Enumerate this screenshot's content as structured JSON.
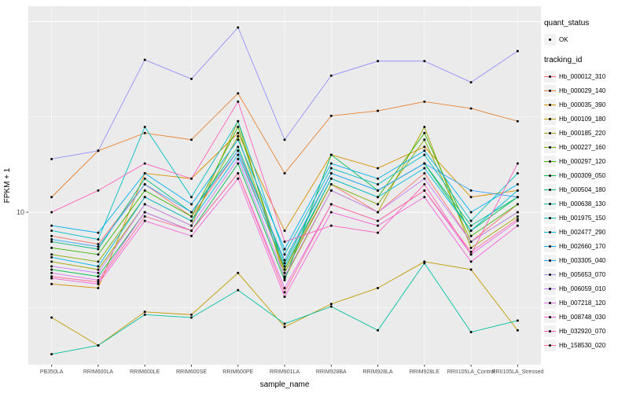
{
  "chart_data": {
    "type": "line",
    "title": "",
    "xlabel": "sample_name",
    "ylabel": "FPKM + 1",
    "y_scale": "log10",
    "ylim_log10": [
      0.2,
      2.08
    ],
    "y_ticks": [
      10
    ],
    "y_tick_labels": [
      "10"
    ],
    "y_gridlines_major": [
      10,
      100
    ],
    "y_gridlines_minor": [
      3.162,
      31.62
    ],
    "grid": true,
    "panel_bg": "#EBEBEB",
    "grid_color": "#FFFFFF",
    "point_color": "#000000",
    "legend_position": "right",
    "categories": [
      "PB350LA",
      "RRIM600LA",
      "RRIM600LE",
      "RRIM600SE",
      "RRIM600PE",
      "RRIM901LA",
      "RRIM928BA",
      "RRIM928LA",
      "RRIM928LE",
      "RRII105LA_Control",
      "RRII105LA_Stressed"
    ],
    "series": [
      {
        "name": "Hb_000012_310",
        "color": "#F8766D",
        "values": [
          7.5,
          6.8,
          14,
          9.5,
          21,
          5.0,
          14,
          10,
          16,
          7.0,
          11
        ]
      },
      {
        "name": "Hb_000029_140",
        "color": "#EA8331",
        "values": [
          12,
          21,
          26,
          24,
          42,
          16,
          32,
          34,
          38,
          35,
          30
        ]
      },
      {
        "name": "Hb_000035_390",
        "color": "#D89000",
        "values": [
          4.2,
          4.0,
          16,
          15,
          26,
          8.0,
          20,
          17,
          22,
          12,
          13
        ]
      },
      {
        "name": "Hb_000109_180",
        "color": "#C09B00",
        "values": [
          2.8,
          2.0,
          3.0,
          2.9,
          4.8,
          2.5,
          3.3,
          4.0,
          5.5,
          5.0,
          2.4
        ]
      },
      {
        "name": "Hb_000185_220",
        "color": "#A3A500",
        "values": [
          5.5,
          5.0,
          11,
          8.5,
          30,
          4.5,
          13,
          10,
          28,
          6.5,
          9.5
        ]
      },
      {
        "name": "Hb_000227_160",
        "color": "#7CAE00",
        "values": [
          6.0,
          5.5,
          12,
          9.0,
          25,
          4.8,
          14,
          11,
          24,
          7.0,
          10
        ]
      },
      {
        "name": "Hb_000297_120",
        "color": "#39B600",
        "values": [
          6.5,
          6.0,
          13,
          9.5,
          28,
          5.0,
          15,
          12,
          26,
          7.5,
          11
        ]
      },
      {
        "name": "Hb_000309_050",
        "color": "#00BB4E",
        "values": [
          5.0,
          4.6,
          10,
          8.0,
          18,
          4.4,
          20,
          13,
          18,
          8.0,
          12
        ]
      },
      {
        "name": "Hb_000504_180",
        "color": "#00BF7D",
        "values": [
          7.0,
          6.4,
          15,
          10,
          22,
          5.4,
          16,
          13,
          18,
          8.5,
          12
        ]
      },
      {
        "name": "Hb_000638_130",
        "color": "#00C1A3",
        "values": [
          1.8,
          2.0,
          2.9,
          2.8,
          3.9,
          2.6,
          3.2,
          2.4,
          5.4,
          2.35,
          2.7
        ]
      },
      {
        "name": "Hb_001975_150",
        "color": "#00BFC4",
        "values": [
          8.0,
          7.2,
          28,
          12,
          30,
          6.0,
          17,
          14,
          20,
          9.0,
          16
        ]
      },
      {
        "name": "Hb_002477_290",
        "color": "#00BAE0",
        "values": [
          5.8,
          5.2,
          12,
          9.0,
          20,
          5.2,
          15,
          12,
          17,
          8.0,
          13
        ]
      },
      {
        "name": "Hb_002660_170",
        "color": "#00B0F6",
        "values": [
          8.5,
          7.8,
          16,
          11,
          24,
          6.4,
          18,
          15,
          21,
          10,
          14
        ]
      },
      {
        "name": "Hb_003305_040",
        "color": "#35A2FF",
        "values": [
          7.2,
          6.6,
          14,
          10,
          21,
          5.6,
          16,
          13,
          18,
          13,
          12
        ]
      },
      {
        "name": "Hb_005653_070",
        "color": "#9590FF",
        "values": [
          19,
          21,
          63,
          50,
          93,
          24,
          52,
          62,
          62,
          48,
          70
        ]
      },
      {
        "name": "Hb_006059_010",
        "color": "#C77CFF",
        "values": [
          5.2,
          4.8,
          11,
          8.5,
          19,
          4.6,
          13,
          10,
          15,
          7.0,
          10
        ]
      },
      {
        "name": "Hb_007218_120",
        "color": "#E76BF3",
        "values": [
          4.8,
          4.4,
          10,
          8.0,
          16,
          4.0,
          11,
          9.0,
          13,
          6.0,
          9.0
        ]
      },
      {
        "name": "Hb_008748_030",
        "color": "#FA62DB",
        "values": [
          4.5,
          4.2,
          9.0,
          7.5,
          15,
          3.6,
          10,
          8.5,
          12,
          5.5,
          8.5
        ]
      },
      {
        "name": "Hb_032920_070",
        "color": "#FF62BC",
        "values": [
          10,
          13,
          18,
          15,
          38,
          7.0,
          8.5,
          7.8,
          14,
          6.0,
          18
        ]
      },
      {
        "name": "Hb_158530_020",
        "color": "#FF6A98",
        "values": [
          4.6,
          4.3,
          9.5,
          8.0,
          16,
          3.8,
          11,
          9.0,
          13,
          6.2,
          9.2
        ]
      }
    ]
  },
  "legend": {
    "quant_status_title": "quant_status",
    "quant_status_items": [
      {
        "label": "OK"
      }
    ],
    "tracking_title": "tracking_id"
  }
}
